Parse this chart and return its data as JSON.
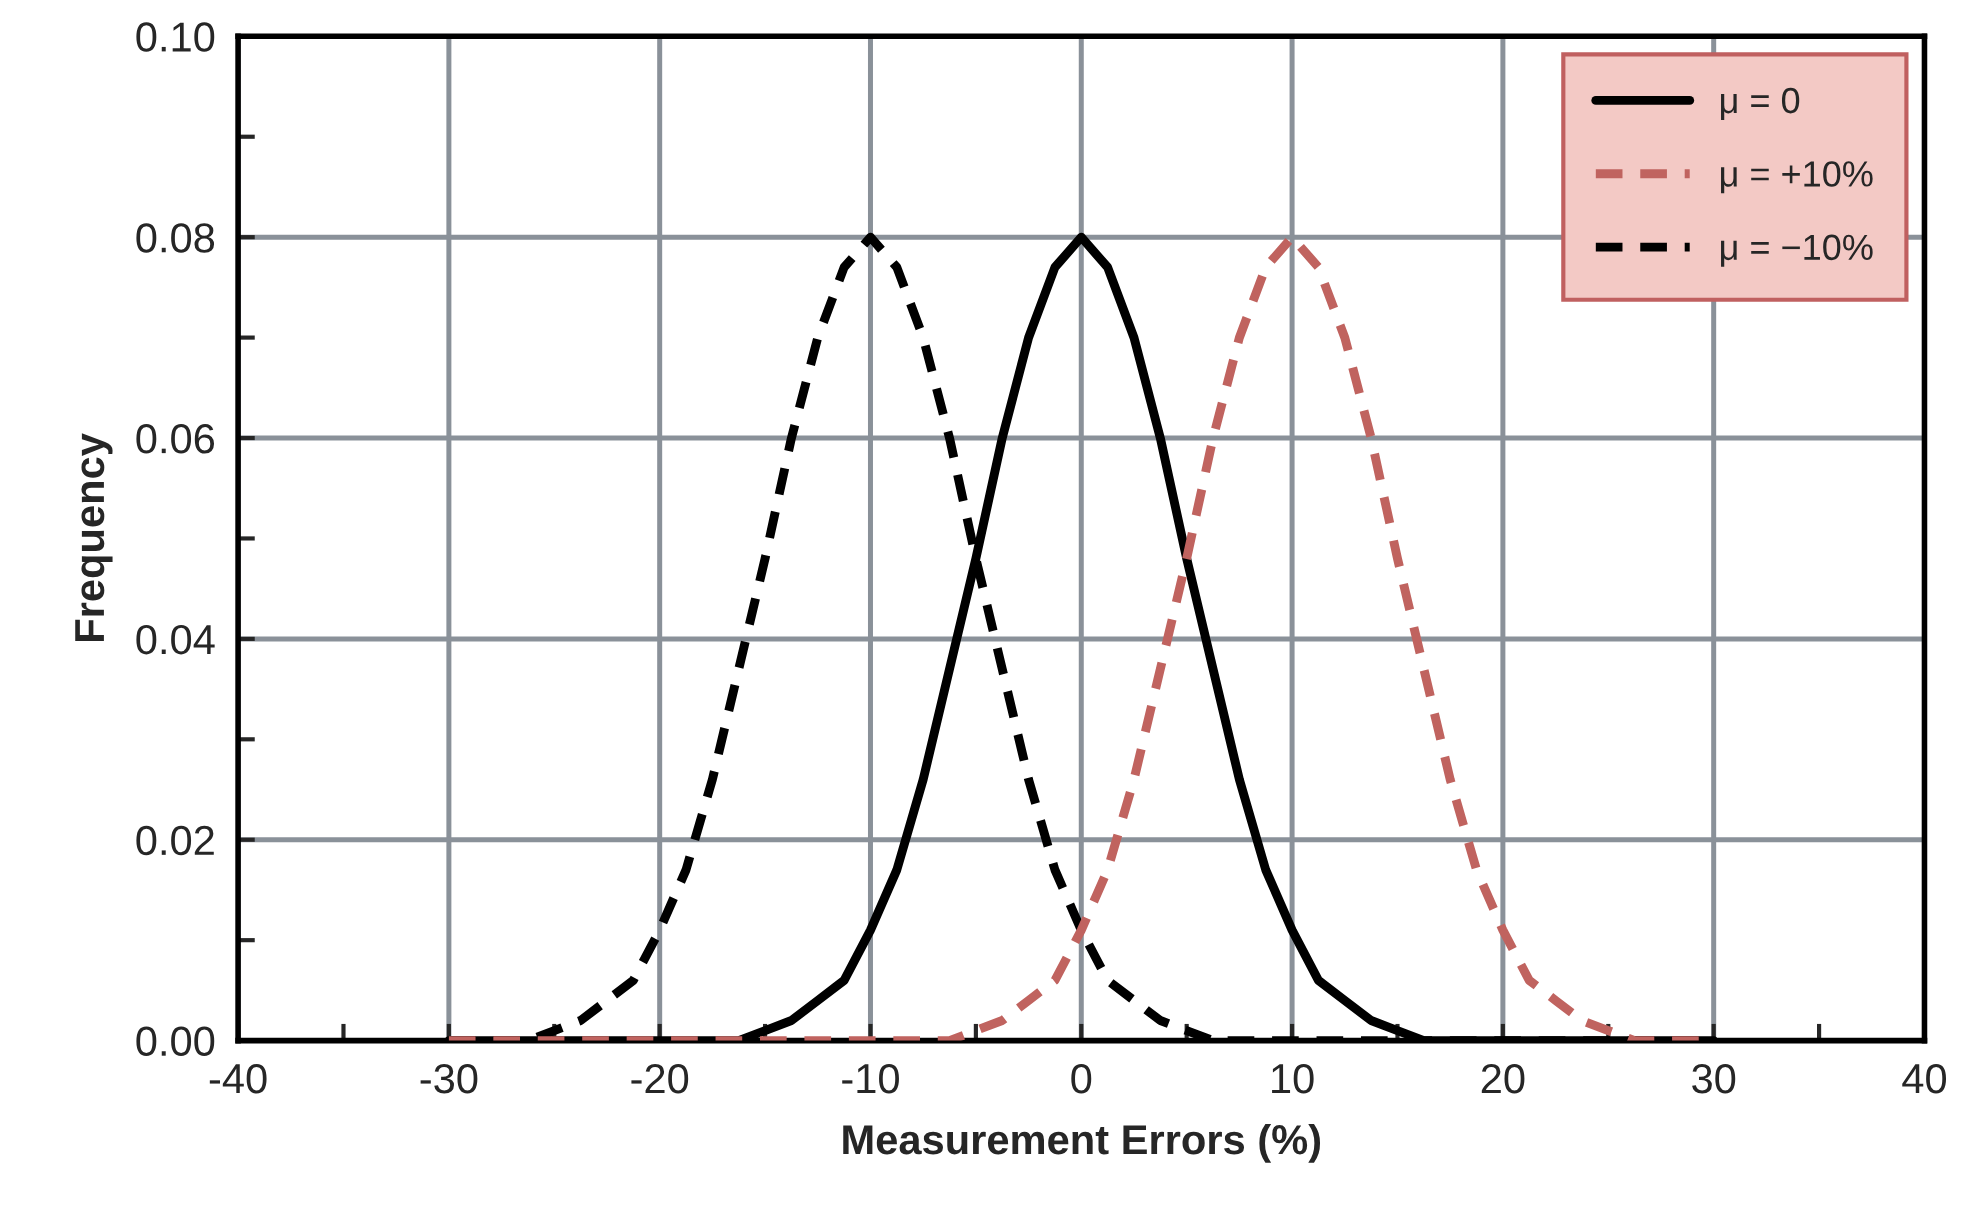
{
  "chart_data": {
    "type": "line",
    "xlabel": "Measurement Errors (%)",
    "ylabel": "Frequency",
    "x": [
      -30,
      -28.75,
      -27.5,
      -26.25,
      -25,
      -23.75,
      -22.5,
      -21.25,
      -20,
      -18.75,
      -17.5,
      -16.25,
      -15,
      -13.75,
      -12.5,
      -11.25,
      -10,
      -8.75,
      -7.5,
      -6.25,
      -5,
      -3.75,
      -2.5,
      -1.25,
      0,
      1.25,
      2.5,
      3.75,
      5,
      6.25,
      7.5,
      8.75,
      10,
      11.25,
      12.5,
      13.75,
      15,
      16.25,
      17.5,
      18.75,
      20,
      21.25,
      22.5,
      23.75,
      25,
      26.25,
      27.5,
      28.75,
      30
    ],
    "series": [
      {
        "name": "μ = 0",
        "color": "#000000",
        "line_style": "solid",
        "values": [
          0,
          0,
          0,
          0,
          0,
          0,
          0,
          0,
          0,
          0,
          0,
          0,
          0.001,
          0.002,
          0.004,
          0.006,
          0.011,
          0.017,
          0.026,
          0.037,
          0.048,
          0.06,
          0.07,
          0.077,
          0.08,
          0.077,
          0.07,
          0.06,
          0.048,
          0.037,
          0.026,
          0.017,
          0.011,
          0.006,
          0.004,
          0.002,
          0.001,
          0,
          0,
          0,
          0,
          0,
          0,
          0,
          0,
          0,
          0,
          0,
          0
        ]
      },
      {
        "name": "μ = +10%",
        "color": "#c0635f",
        "line_style": "dashed",
        "values": [
          0,
          0,
          0,
          0,
          0,
          0,
          0,
          0,
          0,
          0,
          0,
          0,
          0,
          0,
          0,
          0,
          0,
          0,
          0,
          0,
          0.001,
          0.002,
          0.004,
          0.006,
          0.011,
          0.017,
          0.026,
          0.037,
          0.048,
          0.06,
          0.07,
          0.077,
          0.08,
          0.077,
          0.07,
          0.06,
          0.048,
          0.037,
          0.026,
          0.017,
          0.011,
          0.006,
          0.004,
          0.002,
          0.001,
          0,
          0,
          0,
          0
        ]
      },
      {
        "name": "μ = −10%",
        "color": "#000000",
        "line_style": "dashed",
        "values": [
          0,
          0,
          0,
          0,
          0.001,
          0.002,
          0.004,
          0.006,
          0.011,
          0.017,
          0.026,
          0.037,
          0.048,
          0.06,
          0.07,
          0.077,
          0.08,
          0.077,
          0.07,
          0.06,
          0.048,
          0.037,
          0.026,
          0.017,
          0.011,
          0.006,
          0.004,
          0.002,
          0.001,
          0,
          0,
          0,
          0,
          0,
          0,
          0,
          0,
          0,
          0,
          0,
          0,
          0,
          0,
          0,
          0,
          0,
          0,
          0,
          0
        ]
      }
    ],
    "xlim": [
      -40,
      40
    ],
    "ylim": [
      0,
      0.1
    ],
    "xticks": [
      -40,
      {
        "value": -35,
        "label": null
      },
      -30,
      {
        "value": -25,
        "label": null
      },
      -20,
      {
        "value": -15,
        "label": null
      },
      -10,
      {
        "value": -5,
        "label": null
      },
      0,
      {
        "value": 5,
        "label": null
      },
      10,
      {
        "value": 15,
        "label": null
      },
      20,
      {
        "value": 25,
        "label": null
      },
      30,
      {
        "value": 35,
        "label": null
      },
      40
    ],
    "yticks": [
      {
        "value": 0,
        "label": "0.00"
      },
      {
        "value": 0.01,
        "label": null
      },
      {
        "value": 0.02,
        "label": "0.02"
      },
      {
        "value": 0.03,
        "label": null
      },
      {
        "value": 0.04,
        "label": "0.04"
      },
      {
        "value": 0.05,
        "label": null
      },
      {
        "value": 0.06,
        "label": "0.06"
      },
      {
        "value": 0.07,
        "label": null
      },
      {
        "value": 0.08,
        "label": "0.08"
      },
      {
        "value": 0.09,
        "label": null
      },
      {
        "value": 0.1,
        "label": "0.10"
      }
    ],
    "grid": true,
    "legend": "top right"
  }
}
